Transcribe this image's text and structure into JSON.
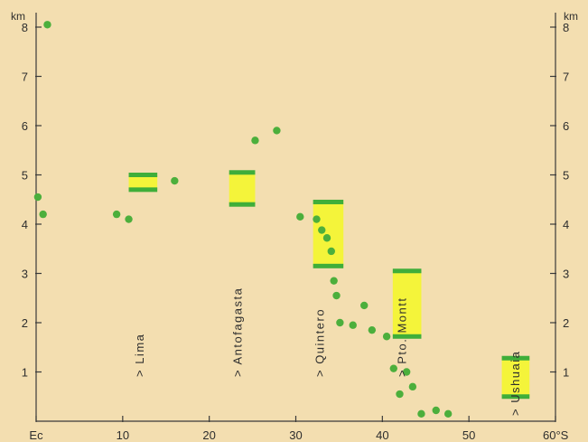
{
  "chart_data": {
    "type": "scatter",
    "title": "",
    "xlabel": "",
    "ylabel": "km",
    "y_right_label": "km",
    "xlim": [
      0,
      60
    ],
    "ylim": [
      0,
      8.5
    ],
    "x_ticks": [
      {
        "value": 0,
        "label": "Ec"
      },
      {
        "value": 10,
        "label": "10"
      },
      {
        "value": 20,
        "label": "20"
      },
      {
        "value": 30,
        "label": "30"
      },
      {
        "value": 40,
        "label": "40"
      },
      {
        "value": 50,
        "label": "50"
      },
      {
        "value": 60,
        "label": "60°S"
      }
    ],
    "y_ticks": [
      1,
      2,
      3,
      4,
      5,
      6,
      7,
      8
    ],
    "colors": {
      "points": "#4caf3c",
      "range_fill": "#f4f43a",
      "range_bar": "#3fae3a",
      "background": "#f3deb0"
    },
    "points": [
      {
        "x": 1.3,
        "y": 8.05
      },
      {
        "x": 0.2,
        "y": 4.55
      },
      {
        "x": 0.8,
        "y": 4.2
      },
      {
        "x": 9.3,
        "y": 4.2
      },
      {
        "x": 10.7,
        "y": 4.1
      },
      {
        "x": 16.0,
        "y": 4.88
      },
      {
        "x": 25.3,
        "y": 5.7
      },
      {
        "x": 27.8,
        "y": 5.9
      },
      {
        "x": 30.5,
        "y": 4.15
      },
      {
        "x": 32.4,
        "y": 4.1
      },
      {
        "x": 33.0,
        "y": 3.88
      },
      {
        "x": 33.6,
        "y": 3.72
      },
      {
        "x": 34.1,
        "y": 3.45
      },
      {
        "x": 34.4,
        "y": 2.85
      },
      {
        "x": 34.7,
        "y": 2.55
      },
      {
        "x": 35.1,
        "y": 2.0
      },
      {
        "x": 36.6,
        "y": 1.95
      },
      {
        "x": 37.9,
        "y": 2.35
      },
      {
        "x": 38.8,
        "y": 1.85
      },
      {
        "x": 40.5,
        "y": 1.72
      },
      {
        "x": 41.3,
        "y": 1.07
      },
      {
        "x": 42.0,
        "y": 0.55
      },
      {
        "x": 42.8,
        "y": 1.0
      },
      {
        "x": 43.5,
        "y": 0.7
      },
      {
        "x": 44.5,
        "y": 0.15
      },
      {
        "x": 46.2,
        "y": 0.22
      },
      {
        "x": 47.6,
        "y": 0.15
      }
    ],
    "ranges": [
      {
        "city": "Lima",
        "x_from": 10.7,
        "x_to": 14.0,
        "y_from": 4.7,
        "y_to": 5.0
      },
      {
        "city": "Antofagasta",
        "x_from": 22.3,
        "x_to": 25.3,
        "y_from": 4.4,
        "y_to": 5.05
      },
      {
        "city": "Quintero",
        "x_from": 32.0,
        "x_to": 35.5,
        "y_from": 3.15,
        "y_to": 4.45
      },
      {
        "city": "Pto. Montt",
        "x_from": 41.2,
        "x_to": 44.5,
        "y_from": 1.72,
        "y_to": 3.05
      },
      {
        "city": "Ushuaia",
        "x_from": 53.8,
        "x_to": 57.0,
        "y_from": 0.5,
        "y_to": 1.28
      }
    ],
    "cities": [
      {
        "name": "Lima",
        "x": 12.0
      },
      {
        "name": "Antofagasta",
        "x": 23.3
      },
      {
        "name": "Quintero",
        "x": 32.8
      },
      {
        "name": "Pto. Montt",
        "x": 42.3
      },
      {
        "name": "Ushuaia",
        "x": 55.4
      }
    ],
    "city_marker": ">"
  }
}
